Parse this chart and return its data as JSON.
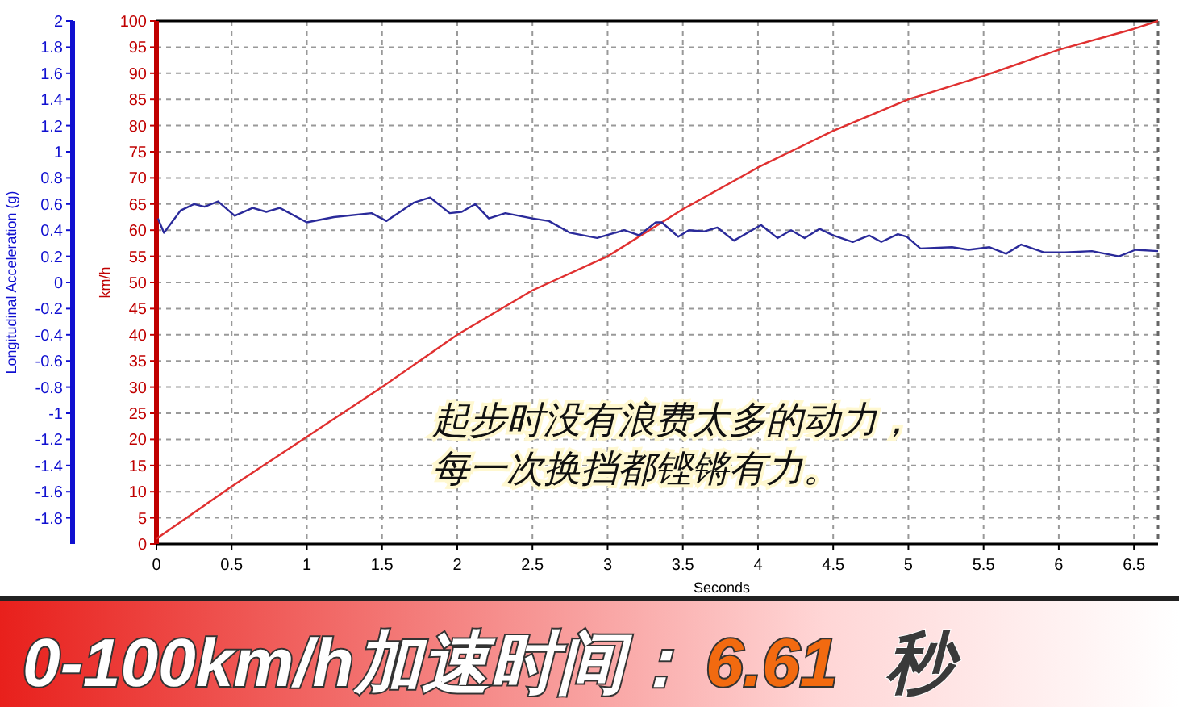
{
  "chart_data": {
    "type": "line",
    "xlabel": "Seconds",
    "ylabel": "km/h",
    "y2label": "Longitudinal Acceleration (g)",
    "xlim": [
      0,
      6.66
    ],
    "xticks": [
      0,
      0.5,
      1,
      1.5,
      2,
      2.5,
      3,
      3.5,
      4,
      4.5,
      5,
      5.5,
      6,
      6.5
    ],
    "ylim": [
      0,
      100
    ],
    "yticks": [
      0,
      5,
      10,
      15,
      20,
      25,
      30,
      35,
      40,
      45,
      50,
      55,
      60,
      65,
      70,
      75,
      80,
      85,
      90,
      95,
      100
    ],
    "y2lim": [
      -2,
      2
    ],
    "y2ticks": [
      -1.8,
      -1.6,
      -1.4,
      -1.2,
      -1,
      -0.8,
      -0.6,
      -0.4,
      -0.2,
      0,
      0.2,
      0.4,
      0.6,
      0.8,
      1,
      1.2,
      1.4,
      1.6,
      1.8,
      2
    ],
    "grid": true,
    "series": [
      {
        "color": "#e03030",
        "x": [
          0,
          0.5,
          1,
          1.5,
          2,
          2.5,
          3,
          3.5,
          4,
          4.5,
          5,
          5.5,
          6,
          6.5,
          6.66
        ],
        "values": [
          1,
          11,
          20.5,
          30,
          40,
          48.5,
          55,
          64,
          72,
          79,
          85,
          89.5,
          94.5,
          98.5,
          100
        ]
      },
      {
        "color": "#2a2a9a",
        "axis": "y2",
        "x": [
          0.01,
          0.05,
          0.16,
          0.25,
          0.32,
          0.41,
          0.52,
          0.64,
          0.73,
          0.82,
          1.0,
          1.18,
          1.43,
          1.53,
          1.71,
          1.82,
          1.95,
          2.03,
          2.12,
          2.21,
          2.32,
          2.5,
          2.61,
          2.75,
          2.93,
          3.11,
          3.21,
          3.32,
          3.36,
          3.47,
          3.54,
          3.64,
          3.73,
          3.84,
          3.93,
          4.02,
          4.13,
          4.22,
          4.31,
          4.41,
          4.5,
          4.63,
          4.74,
          4.82,
          4.93,
          4.99,
          5.08,
          5.29,
          5.4,
          5.54,
          5.65,
          5.75,
          5.9,
          6.04,
          6.22,
          6.4,
          6.51,
          6.66
        ],
        "values": [
          0.49,
          0.38,
          0.55,
          0.6,
          0.58,
          0.62,
          0.51,
          0.57,
          0.54,
          0.57,
          0.46,
          0.5,
          0.53,
          0.47,
          0.61,
          0.65,
          0.53,
          0.54,
          0.6,
          0.49,
          0.53,
          0.49,
          0.47,
          0.38,
          0.34,
          0.4,
          0.36,
          0.46,
          0.46,
          0.35,
          0.4,
          0.39,
          0.42,
          0.32,
          0.38,
          0.44,
          0.34,
          0.4,
          0.34,
          0.41,
          0.36,
          0.31,
          0.36,
          0.31,
          0.37,
          0.35,
          0.26,
          0.27,
          0.25,
          0.27,
          0.22,
          0.29,
          0.23,
          0.23,
          0.24,
          0.2,
          0.25,
          0.24
        ]
      }
    ],
    "annotations": [
      "起步时没有浪费太多的动力，",
      "每一次换挡都铿锵有力。",
      "0-100km/h加速时间：",
      "6.61",
      "秒"
    ]
  }
}
